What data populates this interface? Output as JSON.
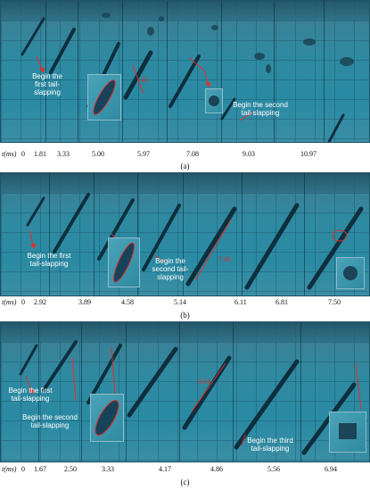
{
  "panels": [
    {
      "id": "a",
      "caption": "(a)",
      "time_unit": "t(ms)",
      "times": [
        "0",
        "1.81",
        "3.33",
        "5.00",
        "5.97",
        "7.08",
        "9.03",
        "10.97"
      ],
      "annotations": [
        "Begin the first tail-slapping",
        "Begin the second tail-slapping"
      ],
      "measurement": "4L"
    },
    {
      "id": "b",
      "caption": "(b)",
      "time_unit": "t(ms)",
      "times": [
        "0",
        "2.92",
        "3.89",
        "4.58",
        "5.14",
        "6.11",
        "6.81",
        "7.50"
      ],
      "annotations": [
        "Begin the first tail-slapping",
        "Begin the second tail-slapping"
      ],
      "measurement": "7.4L"
    },
    {
      "id": "c",
      "caption": "(c)",
      "time_unit": "t(ms)",
      "times": [
        "0",
        "1.67",
        "2.50",
        "3.33",
        "4.17",
        "4.86",
        "5.56",
        "6.94"
      ],
      "annotations": [
        "Begin the first tail-slapping",
        "Begin the second tail-slapping",
        "Begin the third tail-slapping"
      ],
      "measurement": "8.5L"
    }
  ],
  "colors": {
    "water": "#2f8aa1",
    "arrow": "#e0302a",
    "text_on_image": "#ffffff"
  }
}
